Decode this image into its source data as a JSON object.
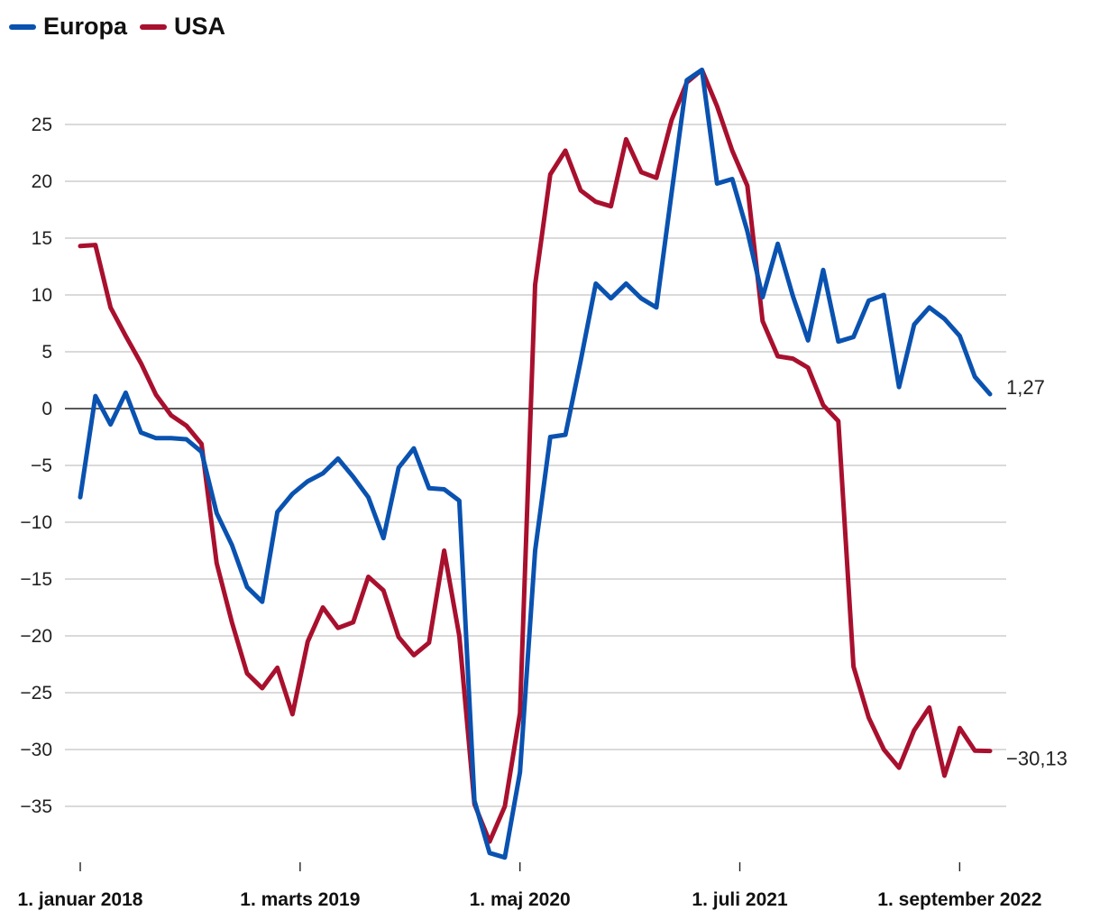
{
  "chart_data": {
    "type": "line",
    "title": "",
    "xlabel": "",
    "ylabel": "",
    "ylim": [
      -39,
      29
    ],
    "yticks": [
      25,
      20,
      15,
      10,
      5,
      0,
      -5,
      -10,
      -15,
      -20,
      -25,
      -30,
      -35
    ],
    "ytick_labels": [
      "25",
      "20",
      "15",
      "10",
      "5",
      "0",
      "−5",
      "−10",
      "−15",
      "−20",
      "−25",
      "−30",
      "−35"
    ],
    "x_count": 61,
    "xticks": [
      {
        "index": 0,
        "label": "1. januar 2018"
      },
      {
        "index": 14.5,
        "label": "1. marts 2019"
      },
      {
        "index": 29,
        "label": "1. maj 2020"
      },
      {
        "index": 43.5,
        "label": "1. juli 2021"
      },
      {
        "index": 58,
        "label": "1. september 2022"
      }
    ],
    "grid": true,
    "legend": "top-left",
    "series": [
      {
        "name": "Europa",
        "color": "#0a52b0",
        "end_label": "1,27",
        "values": [
          -7.8,
          1.1,
          -1.4,
          1.4,
          -2.1,
          -2.6,
          -2.6,
          -2.7,
          -3.8,
          -9.2,
          -12.0,
          -15.7,
          -17.0,
          -9.1,
          -7.5,
          -6.4,
          -5.7,
          -4.4,
          -6.0,
          -7.8,
          -11.4,
          -5.2,
          -3.5,
          -7.0,
          -7.1,
          -8.1,
          -34.5,
          -39.1,
          -39.5,
          -32.0,
          -12.5,
          -2.5,
          -2.3,
          4.2,
          11.0,
          9.7,
          11.0,
          9.7,
          8.9,
          19.0,
          28.9,
          29.8,
          19.8,
          20.2,
          15.6,
          9.8,
          14.5,
          9.9,
          6.0,
          12.2,
          5.9,
          6.3,
          9.5,
          10.0,
          1.9,
          7.4,
          8.9,
          7.9,
          6.4,
          2.8,
          1.27
        ]
      },
      {
        "name": "USA",
        "color": "#a8102e",
        "end_label": "−30,13",
        "values": [
          14.3,
          14.4,
          8.9,
          6.4,
          4.0,
          1.2,
          -0.6,
          -1.5,
          -3.1,
          -13.6,
          -18.8,
          -23.3,
          -24.6,
          -22.8,
          -26.9,
          -20.5,
          -17.5,
          -19.3,
          -18.8,
          -14.8,
          -16.0,
          -20.1,
          -21.7,
          -20.6,
          -12.5,
          -20.0,
          -34.8,
          -38.1,
          -35.0,
          -26.8,
          10.9,
          20.6,
          22.7,
          19.2,
          18.2,
          17.8,
          23.7,
          20.8,
          20.3,
          25.4,
          28.7,
          29.8,
          26.6,
          22.7,
          19.6,
          7.7,
          4.6,
          4.4,
          3.6,
          0.3,
          -1.1,
          -22.7,
          -27.2,
          -30.0,
          -31.6,
          -28.3,
          -26.3,
          -32.3,
          -28.1,
          -30.1,
          -30.13
        ]
      }
    ]
  }
}
